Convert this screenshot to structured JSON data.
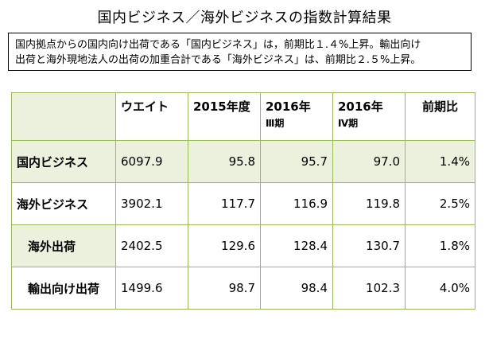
{
  "title": "国内ビジネス／海外ビジネスの指数計算結果",
  "note": {
    "line1": "国内拠点からの国内向け出荷である「国内ビジネス」は，前期比１.４%上昇。輸出向け",
    "line2": "出荷と海外現地法人の出荷の加重合計である「海外ビジネス」は、前期比２.５%上昇。"
  },
  "table": {
    "headers": {
      "col0": "",
      "weight": "ウエイト",
      "fy2015": "2015年度",
      "q3_main": "2016年",
      "q3_sub": "Ⅲ期",
      "q4_main": "2016年",
      "q4_sub": "Ⅳ期",
      "change": "前期比"
    },
    "rows": [
      {
        "label": "国内ビジネス",
        "weight": "6097.9",
        "fy2015": "95.8",
        "q3": "95.7",
        "q4": "97.0",
        "change": "1.4%"
      },
      {
        "label": "海外ビジネス",
        "weight": "3902.1",
        "fy2015": "117.7",
        "q3": "116.9",
        "q4": "119.8",
        "change": "2.5%"
      },
      {
        "label": "海外出荷",
        "weight": "2402.5",
        "fy2015": "129.6",
        "q3": "128.4",
        "q4": "130.7",
        "change": "1.8%"
      },
      {
        "label": "輸出向け出荷",
        "weight": "1499.6",
        "fy2015": "98.7",
        "q3": "98.4",
        "q4": "102.3",
        "change": "4.0%"
      }
    ]
  },
  "colors": {
    "grid_border": "#9bbb59",
    "shade": "#ebf1dd"
  }
}
